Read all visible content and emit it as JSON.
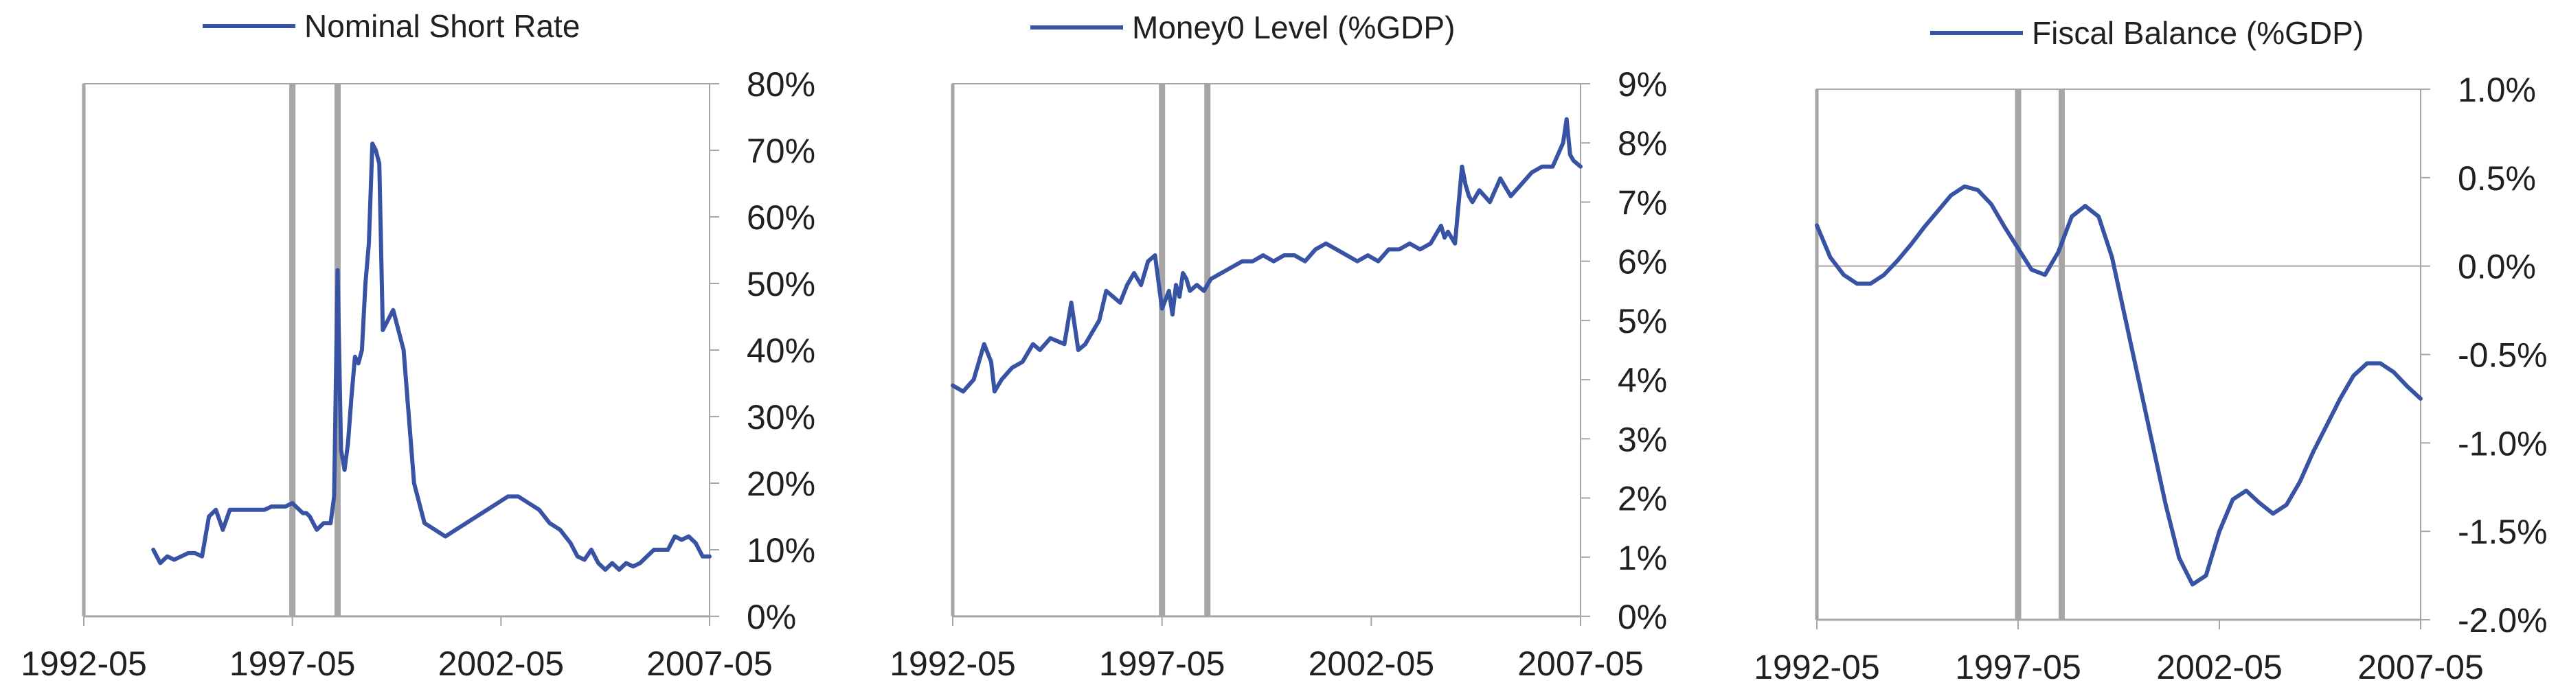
{
  "colors": {
    "series": "#3953a4",
    "axis": "#a6a6a6",
    "event_line": "#a6a6a6",
    "text": "#231f20"
  },
  "chart_data": [
    {
      "type": "line",
      "legend": "Nominal Short Rate",
      "legend_position": "top",
      "grid": false,
      "x_tick_labels": [
        "1992-05",
        "1997-05",
        "2002-05",
        "2007-05"
      ],
      "y_tick_labels": [
        "0%",
        "10%",
        "20%",
        "30%",
        "40%",
        "50%",
        "60%",
        "70%",
        "80%"
      ],
      "xlim": [
        "1992-05",
        "2007-05"
      ],
      "ylim": [
        0,
        80
      ],
      "y_axis_side": "right",
      "event_lines": [
        "1997-05",
        "1998-06"
      ],
      "series": [
        {
          "x": [
            "1994-01",
            "1994-03",
            "1994-05",
            "1994-07",
            "1994-09",
            "1994-11",
            "1995-01",
            "1995-03",
            "1995-05",
            "1995-07",
            "1995-09",
            "1995-11",
            "1996-01",
            "1996-03",
            "1996-05",
            "1996-07",
            "1996-09",
            "1996-11",
            "1997-01",
            "1997-03",
            "1997-05",
            "1997-06",
            "1997-07",
            "1997-08",
            "1997-09",
            "1997-10",
            "1997-11",
            "1997-12",
            "1998-02",
            "1998-04",
            "1998-05",
            "1998-06",
            "1998-07",
            "1998-08",
            "1998-09",
            "1998-10",
            "1998-11",
            "1998-12",
            "1999-01",
            "1999-02",
            "1999-03",
            "1999-04",
            "1999-05",
            "1999-06",
            "1999-07",
            "1999-10",
            "2000-01",
            "2000-04",
            "2000-07",
            "2000-10",
            "2001-01",
            "2001-04",
            "2001-07",
            "2001-10",
            "2002-01",
            "2002-04",
            "2002-07",
            "2002-10",
            "2003-01",
            "2003-04",
            "2003-07",
            "2003-10",
            "2004-01",
            "2004-03",
            "2004-05",
            "2004-07",
            "2004-09",
            "2004-11",
            "2005-01",
            "2005-03",
            "2005-05",
            "2005-07",
            "2005-09",
            "2005-11",
            "2006-01",
            "2006-03",
            "2006-05",
            "2006-07",
            "2006-09",
            "2006-11",
            "2007-01",
            "2007-03",
            "2007-05"
          ],
          "y": [
            10,
            8,
            9,
            8.5,
            9,
            9.5,
            9.5,
            9,
            15,
            16,
            13,
            16,
            16,
            16,
            16,
            16,
            16,
            16.5,
            16.5,
            16.5,
            17,
            16.5,
            16,
            15.5,
            15.5,
            15,
            14,
            13,
            14,
            14,
            18,
            52,
            25,
            22,
            26,
            33,
            39,
            38,
            40,
            50,
            56,
            71,
            70,
            68,
            43,
            46,
            40,
            20,
            14,
            13,
            12,
            13,
            14,
            15,
            16,
            17,
            18,
            18,
            17,
            16,
            14,
            13,
            11,
            9,
            8.5,
            10,
            8,
            7,
            8,
            7,
            8,
            7.5,
            8,
            9,
            10,
            10,
            10,
            12,
            11.5,
            12,
            11,
            9,
            9
          ]
        }
      ]
    },
    {
      "type": "line",
      "legend": "Money0 Level (%GDP)",
      "legend_position": "top",
      "grid": false,
      "x_tick_labels": [
        "1992-05",
        "1997-05",
        "2002-05",
        "2007-05"
      ],
      "y_tick_labels": [
        "0%",
        "1%",
        "2%",
        "3%",
        "4%",
        "5%",
        "6%",
        "7%",
        "8%",
        "9%"
      ],
      "xlim": [
        "1992-05",
        "2007-05"
      ],
      "ylim": [
        0,
        9
      ],
      "y_axis_side": "right",
      "event_lines": [
        "1997-05",
        "1998-06"
      ],
      "series": [
        {
          "x": [
            "1992-05",
            "1992-08",
            "1992-11",
            "1993-02",
            "1993-04",
            "1993-05",
            "1993-07",
            "1993-10",
            "1994-01",
            "1994-04",
            "1994-06",
            "1994-09",
            "1995-01",
            "1995-03",
            "1995-05",
            "1995-07",
            "1995-09",
            "1995-11",
            "1996-01",
            "1996-03",
            "1996-05",
            "1996-07",
            "1996-09",
            "1996-11",
            "1997-01",
            "1997-03",
            "1997-05",
            "1997-07",
            "1997-08",
            "1997-09",
            "1997-10",
            "1997-11",
            "1997-12",
            "1998-01",
            "1998-03",
            "1998-05",
            "1998-07",
            "1998-10",
            "1999-01",
            "1999-04",
            "1999-07",
            "1999-10",
            "2000-01",
            "2000-04",
            "2000-07",
            "2000-10",
            "2001-01",
            "2001-04",
            "2001-07",
            "2001-10",
            "2002-01",
            "2002-04",
            "2002-07",
            "2002-10",
            "2003-01",
            "2003-04",
            "2003-07",
            "2003-10",
            "2004-01",
            "2004-02",
            "2004-03",
            "2004-05",
            "2004-07",
            "2004-08",
            "2004-09",
            "2004-10",
            "2004-12",
            "2005-03",
            "2005-06",
            "2005-09",
            "2005-12",
            "2006-03",
            "2006-06",
            "2006-09",
            "2006-12",
            "2007-01",
            "2007-02",
            "2007-03",
            "2007-05"
          ],
          "y": [
            3.9,
            3.8,
            4.0,
            4.6,
            4.3,
            3.8,
            4.0,
            4.2,
            4.3,
            4.6,
            4.5,
            4.7,
            4.6,
            5.3,
            4.5,
            4.6,
            4.8,
            5.0,
            5.5,
            5.4,
            5.3,
            5.6,
            5.8,
            5.6,
            6.0,
            6.1,
            5.2,
            5.5,
            5.1,
            5.6,
            5.4,
            5.8,
            5.7,
            5.5,
            5.6,
            5.5,
            5.7,
            5.8,
            5.9,
            6.0,
            6.0,
            6.1,
            6.0,
            6.1,
            6.1,
            6.0,
            6.2,
            6.3,
            6.2,
            6.1,
            6.0,
            6.1,
            6.0,
            6.2,
            6.2,
            6.3,
            6.2,
            6.3,
            6.6,
            6.4,
            6.5,
            6.3,
            7.6,
            7.3,
            7.1,
            7.0,
            7.2,
            7.0,
            7.4,
            7.1,
            7.3,
            7.5,
            7.6,
            7.6,
            8.0,
            8.4,
            7.8,
            7.7,
            7.6
          ]
        }
      ]
    },
    {
      "type": "line",
      "legend": "Fiscal Balance (%GDP)",
      "legend_position": "top",
      "grid": false,
      "x_tick_labels": [
        "1992-05",
        "1997-05",
        "2002-05",
        "2007-05"
      ],
      "y_tick_labels": [
        "1.0%",
        "0.5%",
        "0.0%",
        "-0.5%",
        "-1.0%",
        "-1.5%",
        "-2.0%"
      ],
      "xlim": [
        "1992-05",
        "2007-05"
      ],
      "ylim": [
        -2.0,
        1.0
      ],
      "y_axis_side": "right",
      "event_lines": [
        "1997-05",
        "1998-06"
      ],
      "series": [
        {
          "x": [
            "1992-05",
            "1992-09",
            "1993-01",
            "1993-05",
            "1993-09",
            "1994-01",
            "1994-05",
            "1994-09",
            "1995-01",
            "1995-05",
            "1995-09",
            "1996-01",
            "1996-05",
            "1996-09",
            "1997-01",
            "1997-05",
            "1997-09",
            "1998-01",
            "1998-05",
            "1998-09",
            "1999-01",
            "1999-05",
            "1999-09",
            "2000-01",
            "2000-05",
            "2000-09",
            "2001-01",
            "2001-05",
            "2001-09",
            "2002-01",
            "2002-05",
            "2002-09",
            "2003-01",
            "2003-05",
            "2003-09",
            "2004-01",
            "2004-05",
            "2004-09",
            "2005-01",
            "2005-05",
            "2005-09",
            "2006-01",
            "2006-05",
            "2006-09",
            "2007-01",
            "2007-05"
          ],
          "y": [
            0.23,
            0.05,
            -0.05,
            -0.1,
            -0.1,
            -0.05,
            0.03,
            0.12,
            0.22,
            0.31,
            0.4,
            0.45,
            0.43,
            0.35,
            0.22,
            0.1,
            -0.02,
            -0.05,
            0.08,
            0.28,
            0.34,
            0.28,
            0.05,
            -0.3,
            -0.65,
            -1.0,
            -1.35,
            -1.65,
            -1.8,
            -1.75,
            -1.5,
            -1.32,
            -1.27,
            -1.34,
            -1.4,
            -1.35,
            -1.22,
            -1.05,
            -0.9,
            -0.75,
            -0.62,
            -0.55,
            -0.55,
            -0.6,
            -0.68,
            -0.75
          ]
        }
      ]
    }
  ]
}
